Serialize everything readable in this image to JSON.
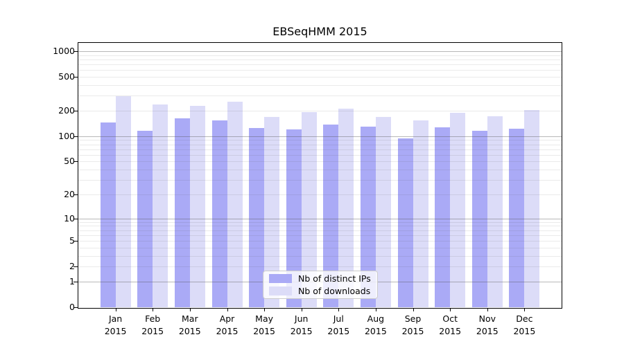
{
  "chart_data": {
    "type": "bar",
    "title": "EBSeqHMM 2015",
    "categories": [
      "Jan 2015",
      "Feb 2015",
      "Mar 2015",
      "Apr 2015",
      "May 2015",
      "Jun 2015",
      "Jul 2015",
      "Aug 2015",
      "Sep 2015",
      "Oct 2015",
      "Nov 2015",
      "Dec 2015"
    ],
    "series": [
      {
        "name": "Nb of distinct IPs",
        "color": "#aaaaf6",
        "values": [
          146,
          116,
          164,
          155,
          124,
          121,
          137,
          131,
          94,
          127,
          116,
          123
        ]
      },
      {
        "name": "Nb of downloads",
        "color": "#dcdcf8",
        "values": [
          297,
          236,
          230,
          257,
          169,
          191,
          212,
          169,
          153,
          190,
          171,
          203
        ]
      }
    ],
    "xlabel": "",
    "ylabel": "",
    "y_ticks": [
      1000,
      500,
      200,
      100,
      50,
      20,
      10,
      5,
      2,
      1,
      0
    ],
    "y_scale": "log1p",
    "ylim": [
      0,
      1250
    ],
    "grid": "log minor + major (1,10,100,1000)",
    "legend_position": "bottom-center",
    "colors": {
      "major_grid": "#b5b5b5",
      "minor_grid": "#eaeaea",
      "axis": "#000000",
      "background": "#ffffff"
    }
  }
}
